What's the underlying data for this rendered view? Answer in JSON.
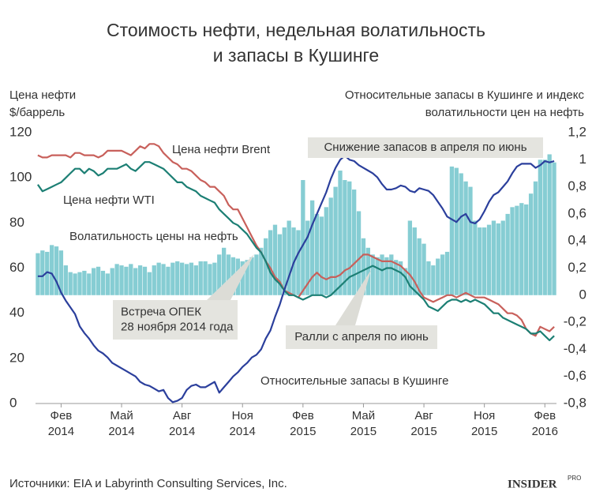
{
  "chart_data": {
    "type": "line",
    "title": [
      "Стоимость нефти, недельная волатильность",
      "и запасы в Кушинге"
    ],
    "ylabel": [
      "Цена нефти",
      "$/баррель"
    ],
    "y2label": [
      "Относительные запасы в Кушинге и индекс",
      "волатильности цен на нефть"
    ],
    "categories": [
      null,
      null,
      null,
      null,
      null,
      "Фев 2014",
      null,
      null,
      null,
      null,
      null,
      null,
      null,
      null,
      null,
      null,
      null,
      null,
      "Май 2014",
      null,
      null,
      null,
      null,
      null,
      null,
      null,
      null,
      null,
      null,
      null,
      null,
      "Авг 2014",
      null,
      null,
      null,
      null,
      null,
      null,
      null,
      null,
      null,
      null,
      null,
      null,
      "Ноя 2014",
      null,
      null,
      null,
      null,
      null,
      null,
      null,
      null,
      null,
      null,
      null,
      null,
      "Фев 2015",
      null,
      null,
      null,
      null,
      null,
      null,
      null,
      null,
      null,
      null,
      null,
      null,
      "Май 2015",
      null,
      null,
      null,
      null,
      null,
      null,
      null,
      null,
      null,
      null,
      null,
      null,
      "Авг 2015",
      null,
      null,
      null,
      null,
      null,
      null,
      null,
      null,
      null,
      null,
      null,
      null,
      "Ноя 2015",
      null,
      null,
      null,
      null,
      null,
      null,
      null,
      null,
      null,
      null,
      null,
      null,
      "Фев 2016",
      null,
      null
    ],
    "series": [
      {
        "name": "Волатильность цены на нефть",
        "type": "bar",
        "axis": "y2",
        "color": "#86cdd3",
        "values": [
          0.31,
          0.33,
          0.32,
          0.37,
          0.36,
          0.33,
          0.22,
          0.17,
          0.16,
          0.17,
          0.18,
          0.16,
          0.2,
          0.21,
          0.18,
          0.16,
          0.2,
          0.23,
          0.22,
          0.21,
          0.23,
          0.2,
          0.22,
          0.21,
          0.17,
          0.22,
          0.24,
          0.23,
          0.21,
          0.24,
          0.25,
          0.24,
          0.23,
          0.24,
          0.22,
          0.25,
          0.25,
          0.23,
          0.24,
          0.3,
          0.35,
          0.3,
          0.28,
          0.27,
          0.25,
          0.26,
          0.28,
          0.3,
          0.35,
          0.42,
          0.48,
          0.52,
          0.45,
          0.5,
          0.55,
          0.5,
          0.48,
          0.85,
          0.55,
          0.7,
          0.6,
          0.58,
          0.65,
          0.72,
          0.8,
          0.92,
          0.85,
          0.84,
          0.78,
          0.62,
          0.42,
          0.35,
          0.3,
          0.28,
          0.3,
          0.28,
          0.3,
          0.26,
          0.25,
          0.2,
          0.55,
          0.5,
          0.42,
          0.38,
          0.25,
          0.22,
          0.27,
          0.3,
          0.32,
          0.95,
          0.94,
          0.9,
          0.84,
          0.8,
          0.55,
          0.5,
          0.5,
          0.52,
          0.55,
          0.53,
          0.55,
          0.6,
          0.65,
          0.66,
          0.68,
          0.67,
          0.75,
          0.84,
          1.0,
          1.0,
          1.04,
          0.98
        ]
      },
      {
        "name": "Цена нефти Brent",
        "type": "line",
        "color": "#c8605b",
        "values": [
          110,
          109,
          109,
          110,
          110,
          110,
          110,
          109,
          111,
          111,
          110,
          110,
          110,
          109,
          110,
          112,
          112,
          112,
          112,
          111,
          110,
          112,
          114,
          113,
          115,
          115,
          114,
          111,
          109,
          107,
          106,
          104,
          104,
          103,
          101,
          99,
          98,
          96,
          96,
          94,
          92,
          88,
          86,
          86,
          82,
          78,
          74,
          70,
          67,
          63,
          60,
          56,
          54,
          50,
          49,
          48,
          47,
          50,
          53,
          56,
          58,
          56,
          55,
          56,
          56,
          57,
          59,
          60,
          62,
          64,
          66,
          66,
          65,
          64,
          63,
          63,
          63,
          62,
          61,
          59,
          57,
          54,
          50,
          47,
          46,
          45,
          46,
          47,
          48,
          48,
          47,
          48,
          49,
          48,
          47,
          47,
          47,
          46,
          45,
          44,
          42,
          40,
          40,
          39,
          37,
          33,
          31,
          30,
          34,
          33,
          32,
          34
        ]
      },
      {
        "name": "Цена нефти WTI",
        "type": "line",
        "color": "#1c7f74",
        "values": [
          97,
          94,
          95,
          96,
          97,
          98,
          100,
          102,
          104,
          104,
          102,
          104,
          103,
          101,
          102,
          104,
          104,
          104,
          105,
          106,
          104,
          103,
          105,
          107,
          107,
          106,
          105,
          104,
          102,
          100,
          98,
          98,
          96,
          95,
          94,
          92,
          91,
          90,
          89,
          86,
          84,
          82,
          80,
          79,
          77,
          75,
          72,
          69,
          67,
          63,
          58,
          55,
          53,
          50,
          48,
          48,
          47,
          46,
          47,
          48,
          48,
          48,
          47,
          48,
          50,
          52,
          54,
          56,
          57,
          58,
          59,
          60,
          61,
          60,
          59,
          60,
          60,
          59,
          58,
          56,
          52,
          50,
          48,
          46,
          43,
          42,
          41,
          43,
          45,
          46,
          46,
          45,
          46,
          45,
          46,
          45,
          44,
          42,
          40,
          40,
          38,
          37,
          36,
          35,
          34,
          33,
          31,
          31,
          32,
          30,
          28,
          30
        ]
      },
      {
        "name": "Относительные запасы в Кушинге",
        "type": "line",
        "axis": "y2",
        "color": "#2b3f9c",
        "values": [
          0.14,
          0.14,
          0.17,
          0.16,
          0.1,
          0.02,
          -0.04,
          -0.09,
          -0.14,
          -0.23,
          -0.28,
          -0.32,
          -0.37,
          -0.41,
          -0.43,
          -0.46,
          -0.5,
          -0.52,
          -0.54,
          -0.56,
          -0.58,
          -0.6,
          -0.64,
          -0.66,
          -0.67,
          -0.69,
          -0.71,
          -0.7,
          -0.76,
          -0.79,
          -0.78,
          -0.76,
          -0.7,
          -0.67,
          -0.66,
          -0.68,
          -0.68,
          -0.66,
          -0.64,
          -0.72,
          -0.68,
          -0.64,
          -0.6,
          -0.57,
          -0.53,
          -0.5,
          -0.46,
          -0.44,
          -0.4,
          -0.32,
          -0.26,
          -0.16,
          -0.07,
          0.04,
          0.14,
          0.24,
          0.31,
          0.37,
          0.43,
          0.52,
          0.6,
          0.68,
          0.76,
          0.86,
          0.94,
          1.0,
          1.03,
          1.0,
          0.99,
          0.96,
          0.94,
          0.92,
          0.9,
          0.87,
          0.82,
          0.78,
          0.78,
          0.79,
          0.81,
          0.8,
          0.77,
          0.76,
          0.79,
          0.78,
          0.77,
          0.74,
          0.69,
          0.64,
          0.58,
          0.56,
          0.54,
          0.58,
          0.6,
          0.54,
          0.53,
          0.56,
          0.62,
          0.69,
          0.74,
          0.76,
          0.8,
          0.84,
          0.9,
          0.95,
          0.97,
          0.97,
          0.97,
          0.94,
          0.96,
          0.99,
          0.98,
          0.99
        ]
      }
    ],
    "ylim": [
      0,
      120
    ],
    "yticks": [
      0,
      20,
      40,
      60,
      80,
      100,
      120
    ],
    "y2lim": [
      -0.8,
      1.2
    ],
    "y2ticks": [
      {
        "value": -0.8,
        "label": "-0,8"
      },
      {
        "value": -0.6,
        "label": "-0,6"
      },
      {
        "value": -0.4,
        "label": "-0,4"
      },
      {
        "value": -0.2,
        "label": "-0,2"
      },
      0,
      {
        "value": 0.2,
        "label": "0,2"
      },
      {
        "value": 0.4,
        "label": "0,4"
      },
      {
        "value": 0.6,
        "label": "0,6"
      },
      {
        "value": 0.8,
        "label": "0,8"
      },
      1,
      {
        "value": 1.2,
        "label": "1,2"
      }
    ],
    "grid": false,
    "callouts": [
      {
        "lines": [
          "Снижение запасов в апреля по июнь"
        ]
      },
      {
        "lines": [
          "Встреча ОПЕК",
          "28 ноября 2014 года"
        ]
      },
      {
        "lines": [
          "Ралли с апреля по июнь"
        ]
      }
    ],
    "source": "Источники: EIA и Labyrinth Consulting Services, Inc.",
    "logo": {
      "text": "INSIDER",
      "sup": "PRO"
    }
  }
}
